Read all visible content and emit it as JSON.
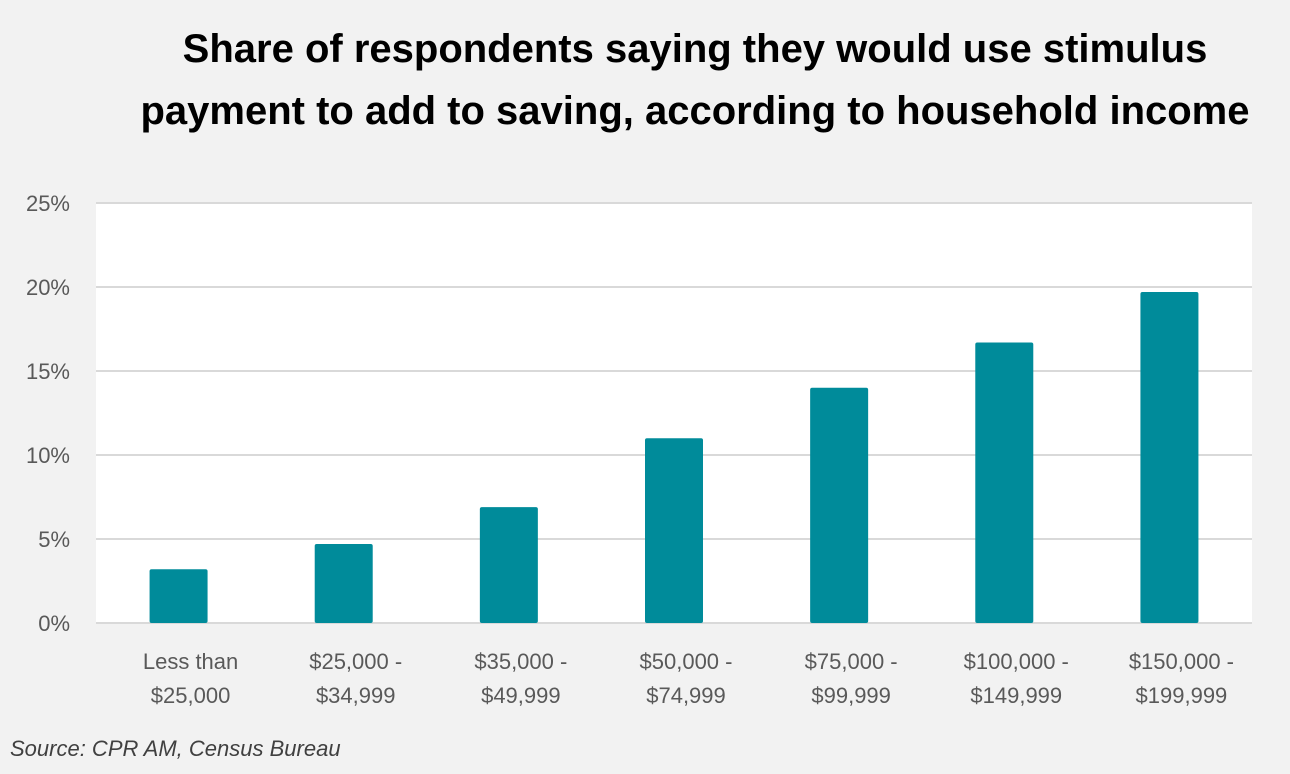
{
  "chart_data": {
    "type": "bar",
    "title": "Share of respondents saying they would use stimulus payment to add to saving, according to household income",
    "categories": [
      [
        "Less than",
        "$25,000"
      ],
      [
        "$25,000 -",
        "$34,999"
      ],
      [
        "$35,000 -",
        "$49,999"
      ],
      [
        "$50,000 -",
        "$74,999"
      ],
      [
        "$75,000 -",
        "$99,999"
      ],
      [
        "$100,000 -",
        "$149,999"
      ],
      [
        "$150,000 -",
        "$199,999"
      ]
    ],
    "values": [
      3.2,
      4.7,
      6.9,
      11.0,
      14.0,
      16.7,
      19.7
    ],
    "value_unit": "%",
    "ylim": [
      0,
      25
    ],
    "y_ticks": [
      0,
      5,
      10,
      15,
      20,
      25
    ],
    "y_tick_labels": [
      "0%",
      "5%",
      "10%",
      "15%",
      "20%",
      "25%"
    ],
    "xlabel": "",
    "ylabel": "",
    "grid": true,
    "legend": "none",
    "colors": {
      "bar": "#008b9a",
      "plot_background": "#ffffff",
      "page_background": "#f2f2f2",
      "gridline": "#d9d9d9"
    }
  },
  "source": "Source: CPR AM, Census Bureau"
}
